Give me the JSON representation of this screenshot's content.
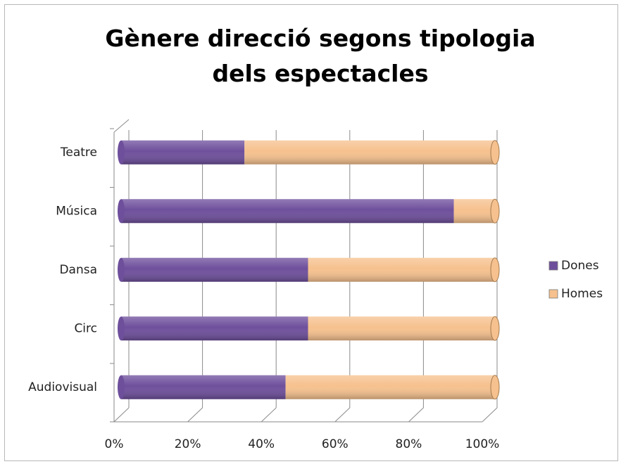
{
  "chart_data": {
    "type": "stacked_bar_horizontal",
    "title": "Gènere direcció segons tipologia dels espectacles",
    "categories": [
      "Teatre",
      "Música",
      "Dansa",
      "Circ",
      "Audiovisual"
    ],
    "series": [
      {
        "name": "Dones",
        "color": "#6e4f9c",
        "values": [
          33,
          89,
          50,
          50,
          44
        ]
      },
      {
        "name": "Homes",
        "color": "#f6c18e",
        "values": [
          67,
          11,
          50,
          50,
          56
        ]
      }
    ],
    "xlim": [
      0,
      100
    ],
    "xticks": [
      {
        "value": 0,
        "label": "0%"
      },
      {
        "value": 20,
        "label": "20%"
      },
      {
        "value": 40,
        "label": "40%"
      },
      {
        "value": 60,
        "label": "60%"
      },
      {
        "value": 80,
        "label": "80%"
      },
      {
        "value": 100,
        "label": "100%"
      }
    ],
    "grid": true,
    "legend": "right"
  }
}
